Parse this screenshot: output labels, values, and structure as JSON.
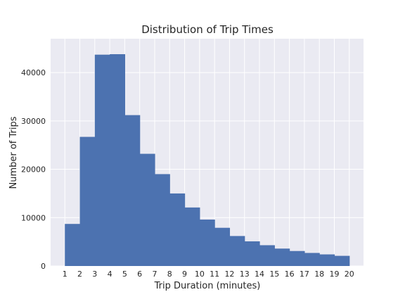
{
  "chart_data": {
    "type": "bar",
    "title": "Distribution of Trip Times",
    "xlabel": "Trip Duration (minutes)",
    "ylabel": "Number of Trips",
    "categories": [
      "1",
      "2",
      "3",
      "4",
      "5",
      "6",
      "7",
      "8",
      "9",
      "10",
      "11",
      "12",
      "13",
      "14",
      "15",
      "16",
      "17",
      "18",
      "19",
      "20"
    ],
    "bins": [
      {
        "start": 1,
        "end": 2,
        "value": 8700
      },
      {
        "start": 2,
        "end": 3,
        "value": 26700
      },
      {
        "start": 3,
        "end": 4,
        "value": 43700
      },
      {
        "start": 4,
        "end": 5,
        "value": 43800
      },
      {
        "start": 5,
        "end": 6,
        "value": 31200
      },
      {
        "start": 6,
        "end": 7,
        "value": 23200
      },
      {
        "start": 7,
        "end": 8,
        "value": 19000
      },
      {
        "start": 8,
        "end": 9,
        "value": 15000
      },
      {
        "start": 9,
        "end": 10,
        "value": 12100
      },
      {
        "start": 10,
        "end": 11,
        "value": 9600
      },
      {
        "start": 11,
        "end": 12,
        "value": 7900
      },
      {
        "start": 12,
        "end": 13,
        "value": 6200
      },
      {
        "start": 13,
        "end": 14,
        "value": 5100
      },
      {
        "start": 14,
        "end": 15,
        "value": 4300
      },
      {
        "start": 15,
        "end": 16,
        "value": 3600
      },
      {
        "start": 16,
        "end": 17,
        "value": 3100
      },
      {
        "start": 17,
        "end": 18,
        "value": 2700
      },
      {
        "start": 18,
        "end": 19,
        "value": 2400
      },
      {
        "start": 19,
        "end": 20,
        "value": 2100
      }
    ],
    "xlim": [
      0.05,
      20.95
    ],
    "ylim": [
      0,
      47000
    ],
    "yticks": [
      0,
      10000,
      20000,
      30000,
      40000
    ],
    "ytick_labels": [
      "0",
      "10000",
      "20000",
      "30000",
      "40000"
    ],
    "grid": true,
    "legend": "none",
    "colors": {
      "bar": "#4c72b0",
      "plot_background": "#eaeaf2",
      "grid": "#ffffff",
      "text": "#262626"
    }
  }
}
